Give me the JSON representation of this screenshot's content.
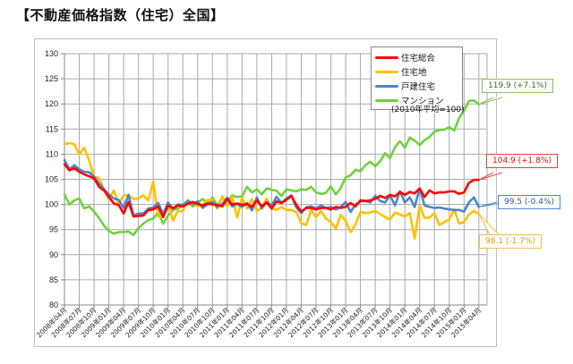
{
  "page": {
    "title": "【不動産価格指数（住宅）全国】"
  },
  "legend": {
    "items": [
      {
        "label": "住宅総合",
        "color": "#ff0000"
      },
      {
        "label": "住宅地",
        "color": "#ffc000"
      },
      {
        "label": "戸建住宅",
        "color": "#4a86c8"
      },
      {
        "label": "マンション",
        "color": "#6ed23c"
      }
    ],
    "base_note": "(2010年平均=100)"
  },
  "callouts": {
    "mansion": {
      "text": "119.9 (+7.1%)",
      "color": "#8cc060",
      "text_color": "#3a6e1a"
    },
    "total": {
      "text": "104.9 (+1.8%)",
      "color": "#e84040",
      "text_color": "#d01010"
    },
    "detached": {
      "text": "99.5 (-0.4%)",
      "color": "#4a86c8",
      "text_color": "#2a5a9a"
    },
    "land": {
      "text": "98.1 (-1.7%)",
      "color": "#f0c040",
      "text_color": "#d4a000"
    }
  },
  "chart_data": {
    "type": "line",
    "title": "【不動産価格指数（住宅）全国】",
    "xlabel": "",
    "ylabel": "",
    "ylim": [
      80,
      130
    ],
    "yticks": [
      80,
      85,
      90,
      95,
      100,
      105,
      110,
      115,
      120,
      125,
      130
    ],
    "grid": true,
    "legend_position": "top-right inside",
    "x_tick_labels": [
      "2008年04月",
      "2008年07月",
      "2008年10月",
      "2009年01月",
      "2009年04月",
      "2009年07月",
      "2009年10月",
      "2010年01月",
      "2010年04月",
      "2010年07月",
      "2010年10月",
      "2011年01月",
      "2011年04月",
      "2011年07月",
      "2011年10月",
      "2012年01月",
      "2012年04月",
      "2012年07月",
      "2012年10月",
      "2013年01月",
      "2013年04月",
      "2013年07月",
      "2013年10月",
      "2014年01月",
      "2014年04月",
      "2014年07月",
      "2014年10月",
      "2015年01月",
      "2015年04月"
    ],
    "x_start": "2008年04月",
    "x_end": "2015年04月",
    "frequency": "monthly",
    "series": [
      {
        "name": "住宅総合",
        "color": "#ff0000",
        "values": [
          108.0,
          106.8,
          107.2,
          106.5,
          106.0,
          105.6,
          105.2,
          103.5,
          102.8,
          101.5,
          100.2,
          99.9,
          98.2,
          100.5,
          97.6,
          97.7,
          97.8,
          98.9,
          99.0,
          99.6,
          97.5,
          99.8,
          99.2,
          99.8,
          99.6,
          100.1,
          100.5,
          100.1,
          99.8,
          100.2,
          100.0,
          99.9,
          99.6,
          101.2,
          100.0,
          100.2,
          99.9,
          100.1,
          99.5,
          100.8,
          99.6,
          100.4,
          99.2,
          100.6,
          100.3,
          100.9,
          101.7,
          99.9,
          98.6,
          99.3,
          99.3,
          99.0,
          99.3,
          99.3,
          99.0,
          99.5,
          99.3,
          99.5,
          100.3,
          99.6,
          100.8,
          100.7,
          100.8,
          101.1,
          101.7,
          101.3,
          101.9,
          101.6,
          102.5,
          101.9,
          102.5,
          102.2,
          103.2,
          101.5,
          102.8,
          102.2,
          102.4,
          102.4,
          102.6,
          102.6,
          102.1,
          102.4,
          104.3,
          104.9,
          104.9
        ]
      },
      {
        "name": "住宅地",
        "color": "#ffc000",
        "values": [
          112.0,
          112.2,
          112.0,
          110.0,
          111.3,
          108.8,
          105.5,
          105.3,
          103.0,
          101.0,
          102.8,
          100.2,
          101.8,
          101.8,
          101.1,
          101.2,
          101.8,
          100.8,
          104.5,
          97.6,
          97.5,
          100.3,
          96.8,
          98.7,
          98.7,
          100.9,
          100.0,
          99.7,
          99.8,
          100.9,
          100.8,
          99.2,
          101.6,
          99.7,
          101.5,
          97.4,
          101.3,
          99.2,
          101.1,
          98.7,
          99.3,
          101.2,
          99.2,
          98.9,
          99.5,
          98.9,
          98.9,
          98.5,
          96.3,
          95.9,
          98.9,
          97.5,
          98.7,
          97.2,
          96.5,
          95.2,
          97.9,
          96.7,
          94.5,
          96.0,
          98.5,
          98.3,
          98.4,
          98.7,
          98.1,
          97.5,
          97.0,
          98.4,
          98.0,
          97.6,
          98.3,
          93.2,
          99.8,
          97.3,
          97.4,
          98.2,
          95.9,
          96.5,
          97.0,
          99.0,
          96.2,
          96.5,
          98.0,
          98.7,
          98.1
        ]
      },
      {
        "name": "戸建住宅",
        "color": "#4a86c8",
        "values": [
          108.8,
          107.0,
          107.8,
          107.0,
          106.5,
          106.4,
          105.5,
          104.2,
          103.0,
          102.0,
          101.2,
          100.9,
          99.3,
          101.9,
          97.8,
          98.2,
          98.2,
          99.2,
          99.4,
          100.3,
          98.1,
          100.4,
          99.2,
          100.0,
          99.9,
          100.7,
          100.0,
          100.6,
          99.3,
          100.0,
          100.5,
          99.5,
          100.1,
          101.3,
          99.6,
          100.1,
          99.5,
          100.3,
          98.8,
          101.4,
          99.2,
          100.5,
          99.8,
          101.5,
          100.3,
          101.2,
          101.8,
          99.4,
          98.3,
          99.4,
          99.6,
          99.2,
          99.8,
          99.3,
          99.5,
          99.0,
          99.5,
          100.5,
          98.5,
          100.0,
          100.6,
          100.7,
          100.4,
          101.7,
          100.7,
          100.4,
          101.8,
          99.8,
          102.6,
          100.4,
          101.4,
          99.5,
          103.2,
          99.8,
          99.5,
          99.3,
          99.4,
          99.2,
          99.0,
          98.9,
          98.9,
          98.6,
          100.4,
          101.4,
          99.5
        ]
      },
      {
        "name": "マンション",
        "color": "#6ed23c",
        "values": [
          102.0,
          100.0,
          100.8,
          101.2,
          99.2,
          99.6,
          98.6,
          97.3,
          95.8,
          94.7,
          94.2,
          94.5,
          94.5,
          94.6,
          93.9,
          95.3,
          96.2,
          96.9,
          97.2,
          98.4,
          96.2,
          97.8,
          98.9,
          99.2,
          99.8,
          100.4,
          99.6,
          100.3,
          101.1,
          100.1,
          101.4,
          99.8,
          101.3,
          100.6,
          101.8,
          101.5,
          101.6,
          103.5,
          102.4,
          103.0,
          102.0,
          103.2,
          102.9,
          102.7,
          101.7,
          103.0,
          102.8,
          102.6,
          103.0,
          102.9,
          103.5,
          102.4,
          102.1,
          102.3,
          103.6,
          102.0,
          103.3,
          105.4,
          105.8,
          106.9,
          106.6,
          107.8,
          108.5,
          107.6,
          108.6,
          110.2,
          109.2,
          111.4,
          112.6,
          111.3,
          113.3,
          112.7,
          111.8,
          112.8,
          113.4,
          114.5,
          114.8,
          114.9,
          115.4,
          114.7,
          117.2,
          118.6,
          120.6,
          120.7,
          119.9
        ]
      }
    ],
    "annotations": [
      {
        "series": "マンション",
        "text": "119.9 (+7.1%)"
      },
      {
        "series": "住宅総合",
        "text": "104.9 (+1.8%)"
      },
      {
        "series": "戸建住宅",
        "text": "99.5 (-0.4%)"
      },
      {
        "series": "住宅地",
        "text": "98.1 (-1.7%)"
      }
    ]
  }
}
